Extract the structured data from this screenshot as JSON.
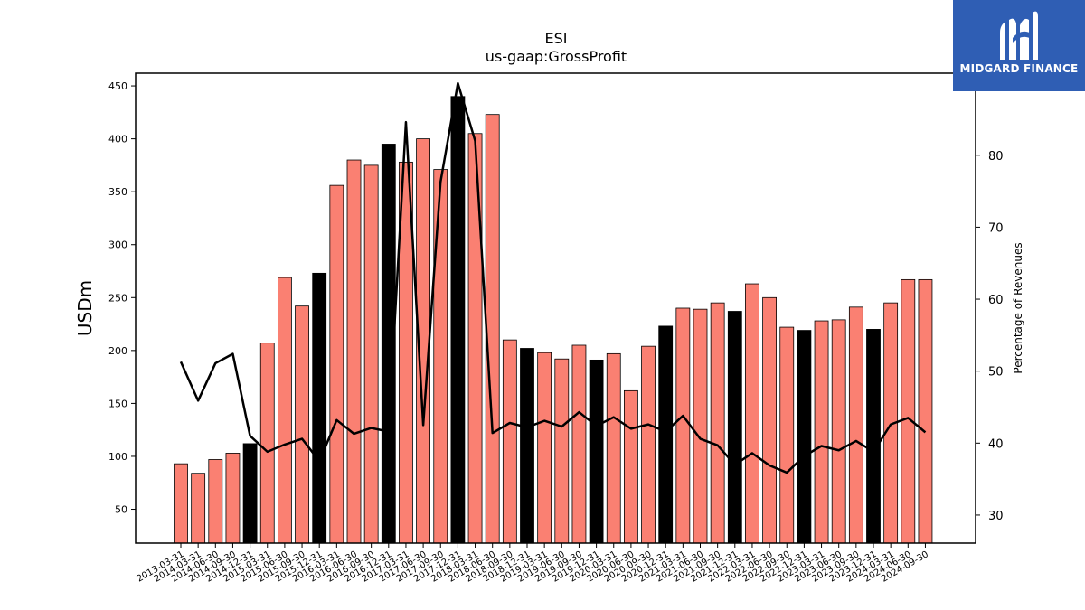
{
  "brand": {
    "name": "MIDGARD FINANCE"
  },
  "chart_data": {
    "type": "bar",
    "title": "ESI",
    "subtitle": "us-gaap:GrossProfit",
    "ylabel": "USDm",
    "y2label": "Percentage of Revenues",
    "ylim": [
      18,
      462
    ],
    "y2lim": [
      26.1,
      91.4
    ],
    "yticks": [
      50,
      100,
      150,
      200,
      250,
      300,
      350,
      400,
      450
    ],
    "y2ticks": [
      30,
      40,
      50,
      60,
      70,
      80,
      90
    ],
    "colors": {
      "quarter": "#fa8072",
      "fiscal_year": "#000000",
      "line": "#000000"
    },
    "categories": [
      "2013-03-31",
      "2014-03-31",
      "2014-06-30",
      "2014-09-30",
      "2014-12-31",
      "2015-03-31",
      "2015-06-30",
      "2015-09-30",
      "2015-12-31",
      "2016-03-31",
      "2016-06-30",
      "2016-09-30",
      "2016-12-31",
      "2017-03-31",
      "2017-06-30",
      "2017-09-30",
      "2017-12-31",
      "2018-03-31",
      "2018-06-30",
      "2018-09-30",
      "2018-12-31",
      "2019-03-31",
      "2019-06-30",
      "2019-09-30",
      "2019-12-31",
      "2020-03-31",
      "2020-06-30",
      "2020-09-30",
      "2020-12-31",
      "2021-03-31",
      "2021-06-30",
      "2021-09-30",
      "2021-12-31",
      "2022-03-31",
      "2022-06-30",
      "2022-09-30",
      "2022-12-31",
      "2023-03-31",
      "2023-06-30",
      "2023-09-30",
      "2023-12-31",
      "2024-03-31",
      "2024-06-30",
      "2024-09-30"
    ],
    "series": [
      {
        "type": "bar",
        "values": [
          93,
          84,
          97,
          103,
          112,
          207,
          269,
          242,
          273,
          356,
          380,
          375,
          395,
          378,
          400,
          371,
          440,
          405,
          423,
          210,
          202,
          198,
          192,
          205,
          191,
          197,
          162,
          204,
          223,
          240,
          239,
          245,
          237,
          263,
          250,
          222,
          219,
          228,
          229,
          241,
          220,
          245,
          267,
          267
        ],
        "fiscal_year_flags": [
          0,
          0,
          0,
          0,
          1,
          0,
          0,
          0,
          1,
          0,
          0,
          0,
          1,
          0,
          0,
          0,
          1,
          0,
          0,
          0,
          1,
          0,
          0,
          0,
          1,
          0,
          0,
          0,
          1,
          0,
          0,
          0,
          1,
          0,
          0,
          0,
          1,
          0,
          0,
          0,
          1,
          0,
          0,
          0
        ]
      },
      {
        "type": "line",
        "axis": "right",
        "values": [
          51.3,
          45.9,
          51.1,
          52.4,
          41.0,
          38.8,
          39.8,
          40.6,
          37.5,
          43.2,
          41.3,
          42.1,
          41.6,
          84.6,
          42.5,
          76.3,
          90.0,
          82.0,
          41.4,
          42.8,
          42.2,
          43.1,
          42.3,
          44.3,
          42.4,
          43.6,
          42.0,
          42.6,
          41.6,
          43.8,
          40.6,
          39.7,
          37.0,
          38.6,
          36.9,
          35.9,
          38.2,
          39.6,
          39.0,
          40.3,
          38.8,
          42.6,
          43.5,
          41.5
        ]
      }
    ]
  }
}
